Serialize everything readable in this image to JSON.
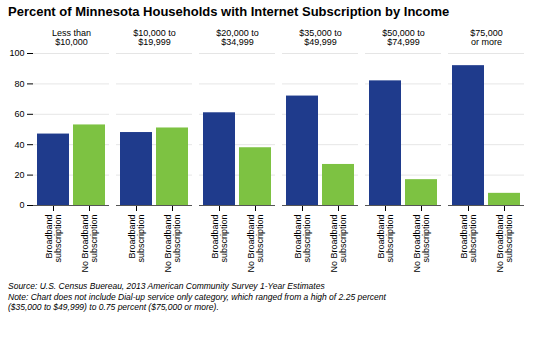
{
  "chart_data": {
    "type": "bar",
    "title": "Percent of Minnesota Households with Internet Subscription by Income",
    "categories": [
      "Less than\n$10,000",
      "$10,000 to\n$19,999",
      "$20,000 to\n$34,999",
      "$35,000 to\n$49,999",
      "$50,000 to\n$74,999",
      "$75,000\nor more"
    ],
    "series": [
      {
        "name": "Broadband\nsubscription",
        "color": "#1F3B8C",
        "values": [
          47,
          48,
          61,
          72,
          82,
          92
        ]
      },
      {
        "name": "No Broadband\nsubscription",
        "color": "#7DC242",
        "values": [
          53,
          51,
          38,
          27,
          17,
          8
        ]
      }
    ],
    "ylim": [
      0,
      100
    ],
    "yticks": [
      0,
      20,
      40,
      60,
      80,
      100
    ],
    "grid": true,
    "annotations": [
      "Source: U.S. Census Buereau, 2013 American Community Survey 1-Year Estimates",
      "Note: Chart does not include Dial-up service only category, which ranged from a high of 2.25 percent\n($35,000 to $49,999) to 0.75 percent ($75,000 or more)."
    ]
  }
}
